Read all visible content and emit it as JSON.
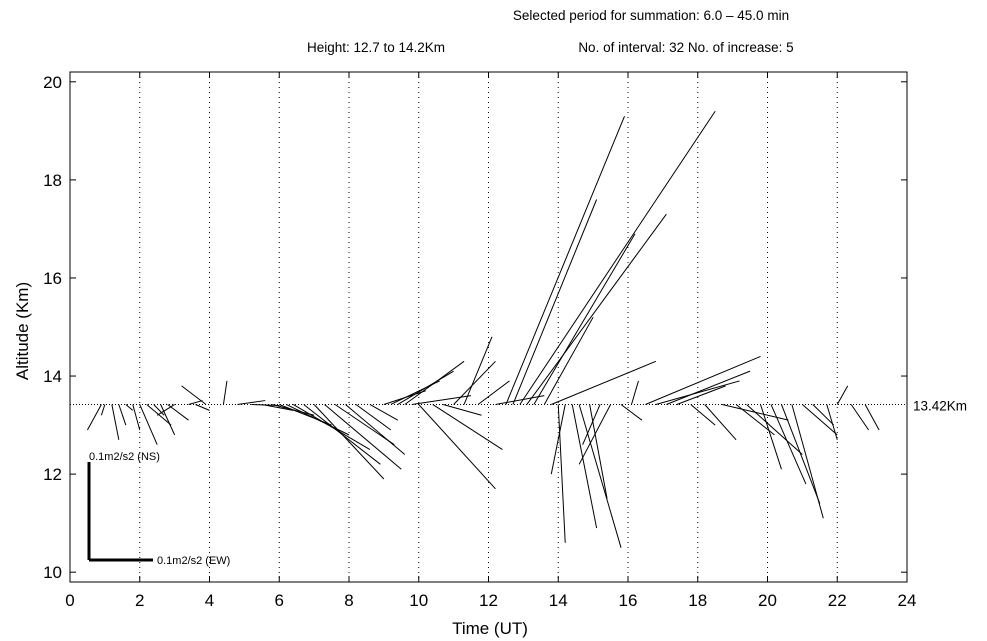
{
  "header": {
    "line1": "Selected period for summation: 6.0 – 45.0 min",
    "height_text": "Height: 12.7 to 14.2Km",
    "interval_text": "No. of interval: 32  No. of increase: 5"
  },
  "chart_data": {
    "type": "scatter",
    "xlabel": "Time (UT)",
    "ylabel": "Altitude (Km)",
    "xlim": [
      0,
      24
    ],
    "ylim": [
      9.8,
      20.2
    ],
    "xticks": [
      "0",
      "2",
      "4",
      "6",
      "8",
      "10",
      "12",
      "14",
      "16",
      "18",
      "20",
      "22",
      "24"
    ],
    "yticks": [
      "10",
      "12",
      "14",
      "16",
      "18",
      "20"
    ],
    "grid": "vertical dotted",
    "reference_altitude": 13.42,
    "reference_label": "13.42Km",
    "scale_ns_label": "0.1m2/s2 (NS)",
    "scale_ew_label": "0.1m2/s2 (EW)",
    "vectors": [
      [
        0.9,
        0.5,
        12.9
      ],
      [
        1.0,
        0.9,
        13.2
      ],
      [
        1.2,
        1.4,
        12.7
      ],
      [
        1.4,
        1.6,
        13.0
      ],
      [
        1.6,
        1.8,
        13.3
      ],
      [
        1.8,
        2.0,
        12.9
      ],
      [
        2.0,
        2.5,
        12.6
      ],
      [
        2.2,
        2.9,
        13.0
      ],
      [
        2.4,
        2.7,
        13.2
      ],
      [
        2.6,
        3.0,
        12.8
      ],
      [
        2.8,
        3.4,
        13.1
      ],
      [
        3.0,
        2.5,
        13.2
      ],
      [
        3.4,
        3.8,
        13.5
      ],
      [
        3.6,
        4.0,
        13.3
      ],
      [
        3.9,
        3.2,
        13.8
      ],
      [
        4.4,
        4.5,
        13.9
      ],
      [
        4.8,
        5.6,
        13.5
      ],
      [
        5.2,
        6.0,
        13.4
      ],
      [
        5.5,
        6.4,
        13.3
      ],
      [
        5.8,
        7.0,
        13.2
      ],
      [
        6.0,
        7.5,
        13.0
      ],
      [
        6.2,
        8.0,
        12.8
      ],
      [
        6.4,
        8.6,
        12.5
      ],
      [
        6.7,
        8.9,
        12.2
      ],
      [
        7.0,
        9.0,
        11.9
      ],
      [
        7.3,
        9.5,
        12.1
      ],
      [
        7.6,
        9.3,
        12.6
      ],
      [
        7.9,
        9.6,
        12.4
      ],
      [
        8.2,
        9.2,
        12.9
      ],
      [
        8.6,
        9.4,
        13.1
      ],
      [
        9.0,
        10.2,
        13.7
      ],
      [
        9.2,
        10.6,
        13.9
      ],
      [
        9.4,
        11.0,
        14.1
      ],
      [
        9.6,
        11.3,
        14.3
      ],
      [
        9.8,
        11.5,
        13.6
      ],
      [
        10.0,
        12.2,
        11.7
      ],
      [
        10.4,
        12.4,
        12.5
      ],
      [
        10.7,
        11.8,
        13.2
      ],
      [
        11.0,
        12.2,
        14.3
      ],
      [
        11.3,
        12.1,
        14.8
      ],
      [
        11.7,
        12.6,
        13.9
      ],
      [
        12.2,
        13.6,
        13.6
      ],
      [
        12.5,
        15.9,
        19.3
      ],
      [
        12.7,
        15.1,
        17.6
      ],
      [
        12.9,
        18.5,
        19.4
      ],
      [
        13.1,
        17.1,
        17.3
      ],
      [
        13.3,
        16.2,
        16.9
      ],
      [
        13.6,
        15.0,
        15.2
      ],
      [
        13.8,
        16.8,
        14.3
      ],
      [
        14.0,
        14.2,
        10.6
      ],
      [
        14.2,
        13.8,
        12.0
      ],
      [
        14.4,
        15.1,
        10.9
      ],
      [
        14.6,
        15.8,
        10.5
      ],
      [
        14.9,
        15.4,
        11.5
      ],
      [
        15.2,
        14.7,
        12.6
      ],
      [
        15.5,
        14.6,
        12.2
      ],
      [
        15.8,
        16.4,
        13.1
      ],
      [
        16.1,
        16.3,
        13.9
      ],
      [
        16.5,
        19.8,
        14.4
      ],
      [
        16.8,
        19.2,
        13.9
      ],
      [
        17.1,
        19.5,
        14.1
      ],
      [
        17.4,
        18.8,
        13.8
      ],
      [
        17.8,
        18.5,
        13.0
      ],
      [
        18.2,
        19.1,
        12.7
      ],
      [
        18.7,
        20.6,
        13.1
      ],
      [
        19.1,
        20.2,
        12.8
      ],
      [
        19.4,
        21.0,
        12.4
      ],
      [
        19.8,
        20.4,
        12.1
      ],
      [
        20.1,
        21.1,
        11.8
      ],
      [
        20.4,
        21.5,
        11.4
      ],
      [
        20.7,
        21.6,
        11.1
      ],
      [
        21.0,
        22.0,
        12.8
      ],
      [
        21.3,
        21.9,
        13.0
      ],
      [
        21.7,
        22.0,
        12.7
      ],
      [
        22.0,
        22.3,
        13.8
      ],
      [
        22.4,
        22.9,
        12.9
      ],
      [
        22.8,
        23.2,
        12.9
      ]
    ]
  }
}
